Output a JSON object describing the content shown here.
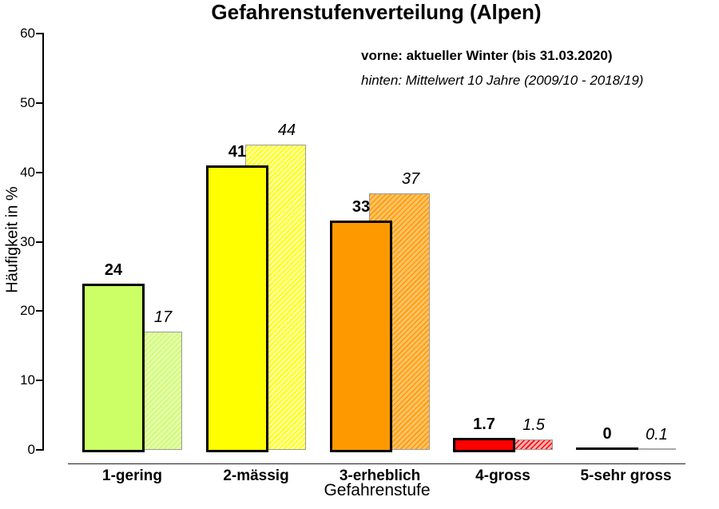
{
  "title": "Gefahrenstufenverteilung (Alpen)",
  "legend": {
    "front": "vorne: aktueller Winter (bis 31.03.2020)",
    "back": "hinten: Mittelwert 10 Jahre (2009/10 - 2018/19)"
  },
  "chart_data": {
    "type": "bar",
    "title": "Gefahrenstufenverteilung (Alpen)",
    "xlabel": "Gefahrenstufe",
    "ylabel": "Häufigkeit in %",
    "ylim": [
      0,
      60
    ],
    "yticks": [
      0,
      10,
      20,
      30,
      40,
      50,
      60
    ],
    "categories": [
      "1-gering",
      "2-mässig",
      "3-erheblich",
      "4-gross",
      "5-sehr gross"
    ],
    "series": [
      {
        "name": "vorne: aktueller Winter (bis 31.03.2020)",
        "position": "front",
        "fill": "solid",
        "values": [
          24,
          41,
          33,
          1.7,
          0
        ],
        "value_labels": [
          "24",
          "41",
          "33",
          "1.7",
          "0"
        ]
      },
      {
        "name": "hinten: Mittelwert 10 Jahre (2009/10 - 2018/19)",
        "position": "back",
        "fill": "hatched",
        "values": [
          17,
          44,
          37,
          1.5,
          0.1
        ],
        "value_labels": [
          "17",
          "44",
          "37",
          "1.5",
          "0.1"
        ]
      }
    ],
    "category_colors": [
      "#ccff66",
      "#ffff00",
      "#ff9900",
      "#ff0000",
      "#ff0000"
    ],
    "category_colors_light": [
      "#e4fbaf",
      "#ffff99",
      "#ffc266",
      "#ffadad",
      "#ffadad"
    ],
    "zero_front_bar_color": "#000000",
    "near_zero_back_bar_color": "#aaaaaa",
    "axis_color": "#000000",
    "legend_position": "top-right",
    "grid": false
  }
}
